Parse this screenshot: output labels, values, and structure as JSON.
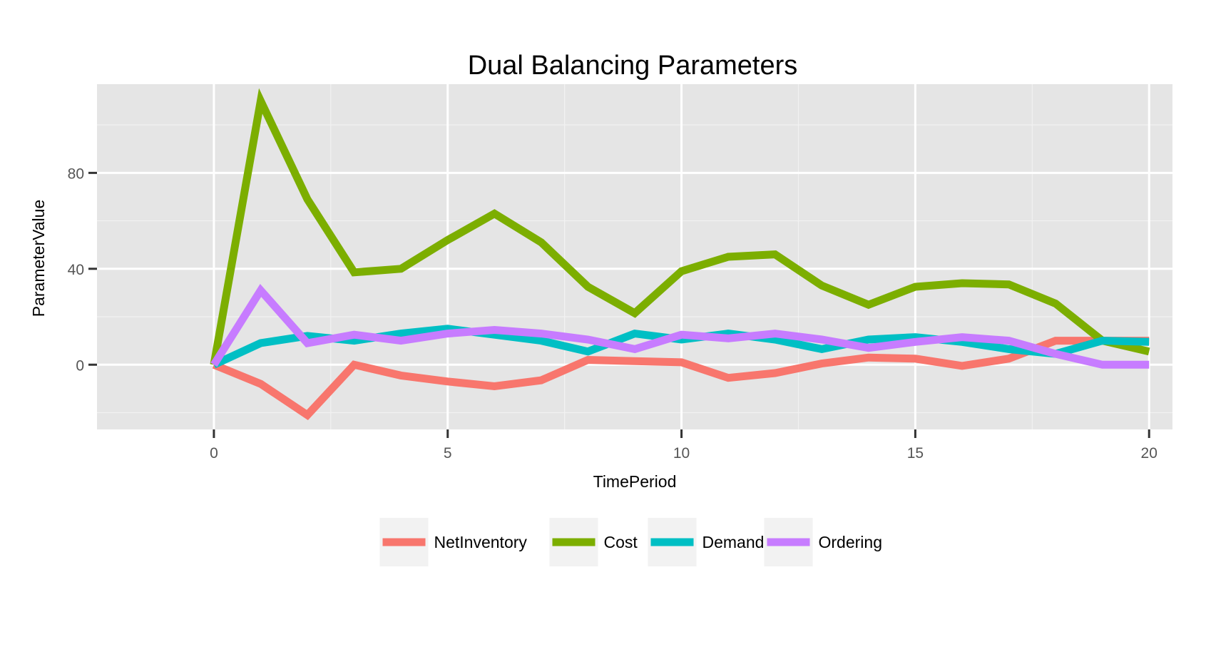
{
  "chart_data": {
    "type": "line",
    "title": "Dual Balancing Parameters",
    "xlabel": "TimePeriod",
    "ylabel": "ParameterValue",
    "xlim": [
      -2.5,
      20.5
    ],
    "ylim": [
      -27,
      117
    ],
    "x_ticks": [
      0,
      5,
      10,
      15,
      20
    ],
    "y_ticks": [
      0,
      40,
      80
    ],
    "x_tick_labels": [
      "0",
      "5",
      "10",
      "15",
      "20"
    ],
    "y_tick_labels": [
      "0",
      "40",
      "80"
    ],
    "grid": true,
    "legend_position": "bottom",
    "x": [
      0,
      1,
      2,
      3,
      4,
      5,
      6,
      7,
      8,
      9,
      10,
      11,
      12,
      13,
      14,
      15,
      16,
      17,
      18,
      19,
      20
    ],
    "series": [
      {
        "name": "NetInventory",
        "color": "#F8766D",
        "values": [
          0,
          -8,
          -21,
          0,
          -4.5,
          -7,
          -9,
          -6.5,
          2,
          1.5,
          1,
          -5.5,
          -3.5,
          0.5,
          3,
          2.5,
          -0.5,
          2.5,
          10,
          10,
          10
        ]
      },
      {
        "name": "Cost",
        "color": "#7CAE00",
        "values": [
          0,
          110,
          69,
          38.5,
          40,
          52,
          63,
          51,
          32.5,
          21.5,
          39,
          45,
          46,
          33,
          25,
          32.5,
          34,
          33.5,
          25.5,
          10,
          5.5
        ]
      },
      {
        "name": "Demand",
        "color": "#00BFC4",
        "values": [
          0,
          9,
          12,
          10,
          13,
          15,
          12.5,
          10,
          5.5,
          13,
          10.5,
          13,
          10.5,
          6.5,
          10.5,
          11.5,
          9.5,
          6.5,
          4.5,
          10,
          9.5
        ]
      },
      {
        "name": "Ordering",
        "color": "#C77CFF",
        "values": [
          0,
          31,
          9,
          12.5,
          10,
          13,
          14.5,
          13,
          10.5,
          6.5,
          12.5,
          11,
          13,
          10.5,
          7,
          9.5,
          11.5,
          10,
          4.5,
          0,
          0
        ]
      }
    ]
  }
}
